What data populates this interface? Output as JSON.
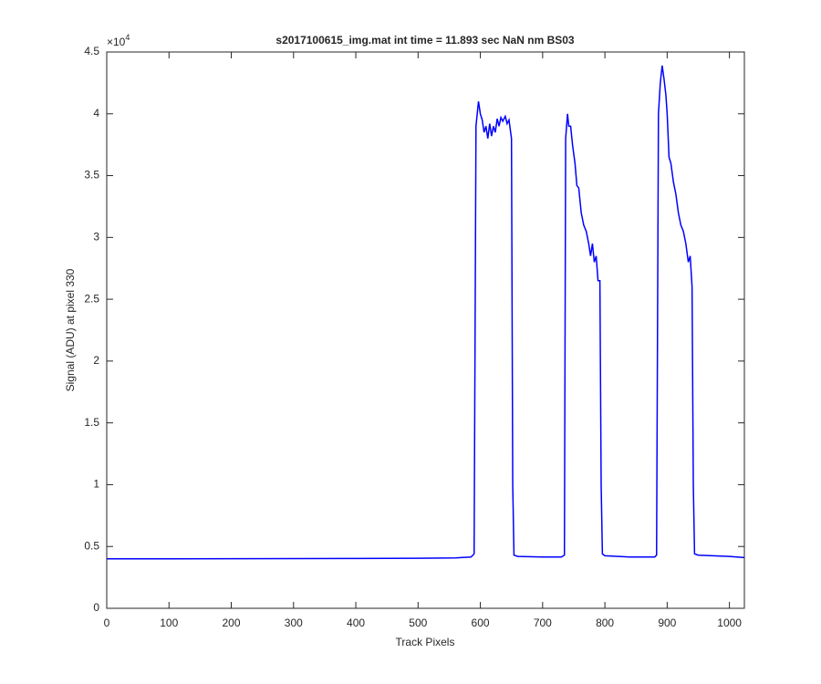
{
  "chart_data": {
    "type": "line",
    "title": "s2017100615_img.mat int time = 11.893 sec  NaN nm BS03",
    "x_label": "Track Pixels",
    "y_label": "Signal (ADU) at pixel 330",
    "y_multiplier_base": "×10",
    "y_multiplier_exponent": "4",
    "color": "#0000ff",
    "xlim": [
      0,
      1024
    ],
    "ylim": [
      0,
      45000
    ],
    "xticks": [
      0,
      100,
      200,
      300,
      400,
      500,
      600,
      700,
      800,
      900,
      1000
    ],
    "yticks": [
      0,
      {
        "value": 5000,
        "label": "0.5"
      },
      {
        "value": 10000,
        "label": "1"
      },
      {
        "value": 15000,
        "label": "1.5"
      },
      {
        "value": 20000,
        "label": "2"
      },
      {
        "value": 25000,
        "label": "2.5"
      },
      {
        "value": 30000,
        "label": "3"
      },
      {
        "value": 35000,
        "label": "3.5"
      },
      {
        "value": 40000,
        "label": "4"
      },
      {
        "value": 45000,
        "label": "4.5"
      }
    ],
    "x": [
      0,
      100,
      200,
      300,
      400,
      500,
      560,
      585,
      590,
      593,
      597,
      600,
      603,
      606,
      609,
      612,
      615,
      618,
      621,
      624,
      627,
      630,
      633,
      636,
      640,
      643,
      646,
      650,
      652,
      654,
      660,
      700,
      730,
      735,
      737,
      740,
      742,
      745,
      748,
      752,
      755,
      758,
      762,
      766,
      770,
      774,
      777,
      780,
      783,
      786,
      789,
      792,
      794,
      796,
      800,
      840,
      880,
      883,
      886,
      889,
      892,
      895,
      898,
      900,
      903,
      906,
      910,
      914,
      918,
      922,
      926,
      930,
      934,
      937,
      940,
      942,
      944,
      950,
      1000,
      1024
    ],
    "values": [
      4000,
      4000,
      4010,
      4020,
      4030,
      4050,
      4080,
      4150,
      4400,
      39000,
      41000,
      40000,
      39500,
      38500,
      39000,
      38000,
      39200,
      38200,
      39000,
      38500,
      39600,
      39000,
      39700,
      39400,
      39800,
      39200,
      39500,
      38000,
      10000,
      4300,
      4200,
      4150,
      4150,
      4300,
      38000,
      40000,
      39000,
      39000,
      37500,
      36000,
      34200,
      34000,
      32000,
      31000,
      30500,
      29500,
      28500,
      29500,
      28000,
      28500,
      26500,
      26500,
      10000,
      4400,
      4250,
      4150,
      4150,
      4300,
      40000,
      42500,
      43900,
      42800,
      41500,
      40000,
      36500,
      36000,
      34500,
      33500,
      32000,
      31000,
      30500,
      29500,
      28000,
      28500,
      26000,
      10000,
      4400,
      4300,
      4200,
      4100
    ]
  }
}
